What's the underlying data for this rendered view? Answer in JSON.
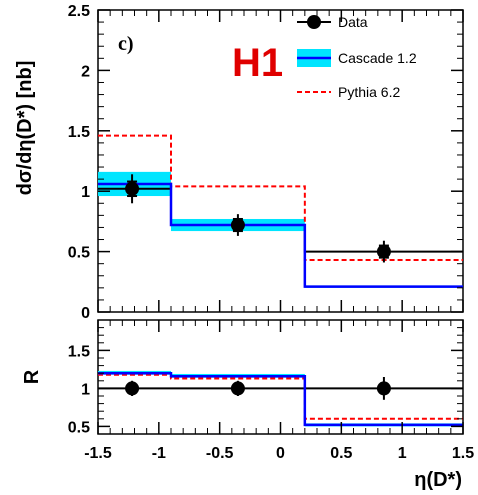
{
  "chart_data": {
    "type": "step-histogram",
    "panel_label": "c)",
    "experiment_logo": "H1",
    "colors": {
      "data": "#000000",
      "cascade_line": "#0000ff",
      "cascade_band": "#00e5ff",
      "pythia": "#ff0000",
      "brand": "#e00000"
    },
    "bin_edges": [
      -1.5,
      -0.9,
      0.2,
      1.5
    ],
    "xlim": [
      -1.5,
      1.5
    ],
    "x_ticks": [
      "-1.5",
      "-1",
      "-0.5",
      "0",
      "0.5",
      "1",
      "1.5"
    ],
    "x_tick_values": [
      -1.5,
      -1,
      -0.5,
      0,
      0.5,
      1,
      1.5
    ],
    "xlabel": "η(D*)",
    "legend": {
      "position": "top-right",
      "entries": [
        {
          "key": "data",
          "label": "Data",
          "style": "marker"
        },
        {
          "key": "cascade",
          "label": "Cascade 1.2",
          "style": "band-line"
        },
        {
          "key": "pythia",
          "label": "Pythia 6.2",
          "style": "dashed"
        }
      ]
    },
    "top_panel": {
      "ylabel": "dσ/dη(D*) [nb]",
      "ylim": [
        0,
        2.5
      ],
      "y_ticks": [
        "0",
        "0.5",
        "1",
        "1.5",
        "2",
        "2.5"
      ],
      "y_tick_values": [
        0,
        0.5,
        1,
        1.5,
        2,
        2.5
      ],
      "data": {
        "x": [
          -1.22,
          -0.35,
          0.85
        ],
        "y": [
          1.02,
          0.72,
          0.5
        ],
        "stat_err": [
          0.06,
          0.05,
          0.05
        ],
        "tot_err": [
          0.12,
          0.09,
          0.09
        ]
      },
      "data_histogram": [
        1.02,
        0.72,
        0.5
      ],
      "cascade": {
        "values": [
          1.06,
          0.72,
          0.21
        ],
        "band_low": [
          0.96,
          0.67,
          0.2
        ],
        "band_high": [
          1.16,
          0.77,
          0.22
        ]
      },
      "pythia": [
        1.46,
        1.04,
        0.43
      ]
    },
    "bottom_panel": {
      "ylabel": "R",
      "ylim": [
        0.4,
        1.9
      ],
      "y_ticks": [
        "0.5",
        "1",
        "1.5"
      ],
      "y_tick_values": [
        0.5,
        1,
        1.5
      ],
      "data": {
        "x": [
          -1.22,
          -0.35,
          0.85
        ],
        "y": [
          1.0,
          1.0,
          1.0
        ],
        "stat_err": [
          0.05,
          0.05,
          0.05
        ],
        "tot_err": [
          0.1,
          0.1,
          0.15
        ]
      },
      "data_line": [
        1.0,
        1.0,
        1.0
      ],
      "cascade": {
        "values": [
          1.2,
          1.16,
          0.52
        ],
        "band_low": [
          1.18,
          1.14,
          0.5
        ],
        "band_high": [
          1.23,
          1.19,
          0.54
        ]
      },
      "pythia": [
        1.18,
        1.13,
        0.6
      ]
    }
  }
}
